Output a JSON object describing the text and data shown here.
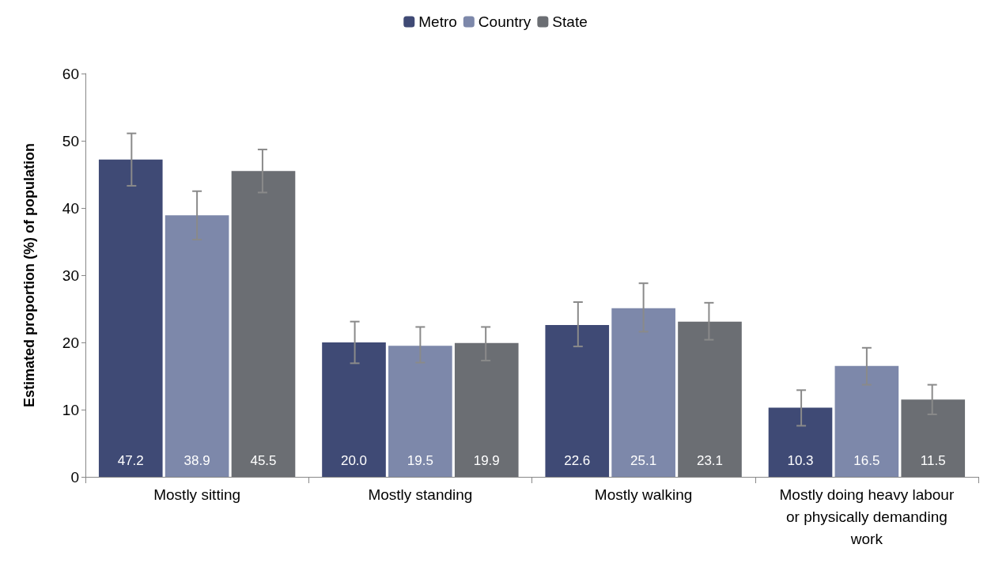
{
  "chart_data": {
    "type": "bar",
    "ylabel": "Estimated proportion (%) of population",
    "categories": [
      "Mostly sitting",
      "Mostly standing",
      "Mostly walking",
      "Mostly doing heavy labour\nor physically demanding\nwork"
    ],
    "series": [
      {
        "name": "Metro",
        "color": "#3f4a75",
        "values": [
          47.2,
          20.0,
          22.6,
          10.3
        ],
        "value_labels": [
          "47.2",
          "20.0",
          "22.6",
          "10.3"
        ],
        "errors": [
          [
            43.3,
            51.1
          ],
          [
            16.9,
            23.1
          ],
          [
            19.4,
            26.0
          ],
          [
            7.6,
            12.9
          ]
        ]
      },
      {
        "name": "Country",
        "color": "#7d88aa",
        "values": [
          38.9,
          19.5,
          25.1,
          16.5
        ],
        "value_labels": [
          "38.9",
          "19.5",
          "25.1",
          "16.5"
        ],
        "errors": [
          [
            35.3,
            42.5
          ],
          [
            17.0,
            22.3
          ],
          [
            21.6,
            28.8
          ],
          [
            13.7,
            19.2
          ]
        ]
      },
      {
        "name": "State",
        "color": "#6b6e73",
        "values": [
          45.5,
          19.9,
          23.1,
          11.5
        ],
        "value_labels": [
          "45.5",
          "19.9",
          "23.1",
          "11.5"
        ],
        "errors": [
          [
            42.3,
            48.7
          ],
          [
            17.3,
            22.3
          ],
          [
            20.4,
            25.9
          ],
          [
            9.3,
            13.7
          ]
        ]
      }
    ],
    "ylim": [
      0,
      60
    ],
    "yticks": [
      0,
      10,
      20,
      30,
      40,
      50,
      60
    ],
    "grid": false,
    "legend": "top"
  }
}
